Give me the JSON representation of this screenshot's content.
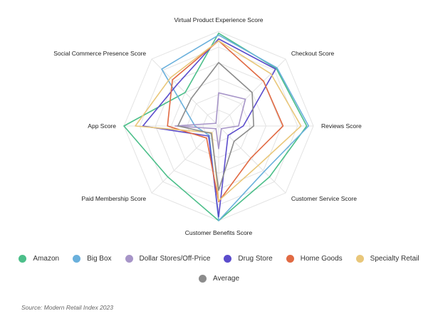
{
  "chart_data": {
    "type": "radar",
    "axes": [
      "Virtual Product Experience Score",
      "Checkout Score",
      "Reviews Score",
      "Customer Service Score",
      "Customer Benefits Score",
      "Paid Membership Score",
      "App Score",
      "Social Commerce Presence Score"
    ],
    "range": [
      0,
      10
    ],
    "grid_levels": 6,
    "series": [
      {
        "name": "Amazon",
        "color": "#4cbf8a",
        "values": [
          9.8,
          8.6,
          9.3,
          7.6,
          10.0,
          7.6,
          10.0,
          5.0
        ]
      },
      {
        "name": "Big Box",
        "color": "#6ab0dc",
        "values": [
          9.6,
          8.7,
          9.5,
          6.8,
          10.0,
          1.4,
          2.5,
          8.5
        ]
      },
      {
        "name": "Dollar Stores/Off-Price",
        "color": "#a795c8",
        "values": [
          3.5,
          4.0,
          2.1,
          0.4,
          2.4,
          0.4,
          4.6,
          0.4
        ]
      },
      {
        "name": "Drug Store",
        "color": "#5b4ccc",
        "values": [
          9.2,
          8.5,
          2.6,
          1.4,
          9.6,
          1.5,
          8.0,
          6.2
        ]
      },
      {
        "name": "Home Goods",
        "color": "#e16a43",
        "values": [
          9.0,
          6.7,
          6.8,
          4.8,
          8.0,
          1.8,
          5.4,
          6.9
        ]
      },
      {
        "name": "Specialty Retail",
        "color": "#e9c77a",
        "values": [
          9.0,
          7.8,
          8.7,
          5.9,
          7.9,
          1.0,
          8.8,
          7.2
        ]
      },
      {
        "name": "Average",
        "color": "#8c8c8c",
        "values": [
          6.7,
          5.0,
          3.7,
          2.3,
          6.8,
          1.1,
          4.3,
          4.1
        ]
      }
    ]
  },
  "legend": {
    "row1": [
      {
        "label": "Amazon",
        "color": "#4cbf8a"
      },
      {
        "label": "Big Box",
        "color": "#6ab0dc"
      },
      {
        "label": "Dollar Stores/Off-Price",
        "color": "#a795c8"
      },
      {
        "label": "Drug Store",
        "color": "#5b4ccc"
      },
      {
        "label": "Home Goods",
        "color": "#e16a43"
      },
      {
        "label": "Specialty Retail",
        "color": "#e9c77a"
      }
    ],
    "row2": [
      {
        "label": "Average",
        "color": "#8c8c8c"
      }
    ]
  },
  "source": "Source: Modern Retail Index 2023"
}
